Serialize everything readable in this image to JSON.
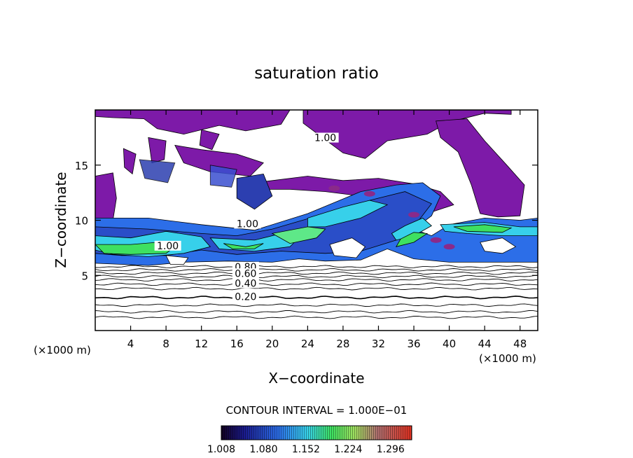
{
  "chart_data": {
    "type": "heatmap",
    "title": "saturation ratio",
    "xlabel": "X−coordinate",
    "ylabel": "Z−coordinate",
    "x_unit": "(×1000 m)",
    "y_unit": "(×1000 m)",
    "xlim": [
      0,
      50
    ],
    "ylim": [
      0,
      20
    ],
    "x_ticks": [
      4,
      8,
      12,
      16,
      20,
      24,
      28,
      32,
      36,
      40,
      44,
      48
    ],
    "y_ticks": [
      5,
      10,
      15
    ],
    "contour_interval_label": "CONTOUR INTERVAL = 1.000E−01",
    "contour_labels": [
      {
        "text": "1.00",
        "x": 26,
        "z": 17.3
      },
      {
        "text": "1.00",
        "x": 17.2,
        "z": 9.5
      },
      {
        "text": "1.00",
        "x": 8.2,
        "z": 7.5
      },
      {
        "text": "0.80",
        "x": 17,
        "z": 5.6
      },
      {
        "text": "0.60",
        "x": 17,
        "z": 5.0
      },
      {
        "text": "0.40",
        "x": 17,
        "z": 4.1
      },
      {
        "text": "0.20",
        "x": 17,
        "z": 2.9
      }
    ],
    "contour_levels_z": [
      1.2,
      1.7,
      2.3,
      3.0,
      3.8,
      4.2,
      4.6,
      4.9,
      5.2,
      5.5,
      5.8
    ],
    "colorbar": {
      "ticks": [
        "1.008",
        "1.080",
        "1.152",
        "1.224",
        "1.296"
      ],
      "min": 1.008,
      "max": 1.332
    },
    "colors": {
      "purple_region": "#7d1aa8",
      "blue_low": "#1a1a8c",
      "blue": "#2c6ee8",
      "cyan": "#37d0ea",
      "green": "#3ee060",
      "red_high": "#d03020"
    }
  }
}
